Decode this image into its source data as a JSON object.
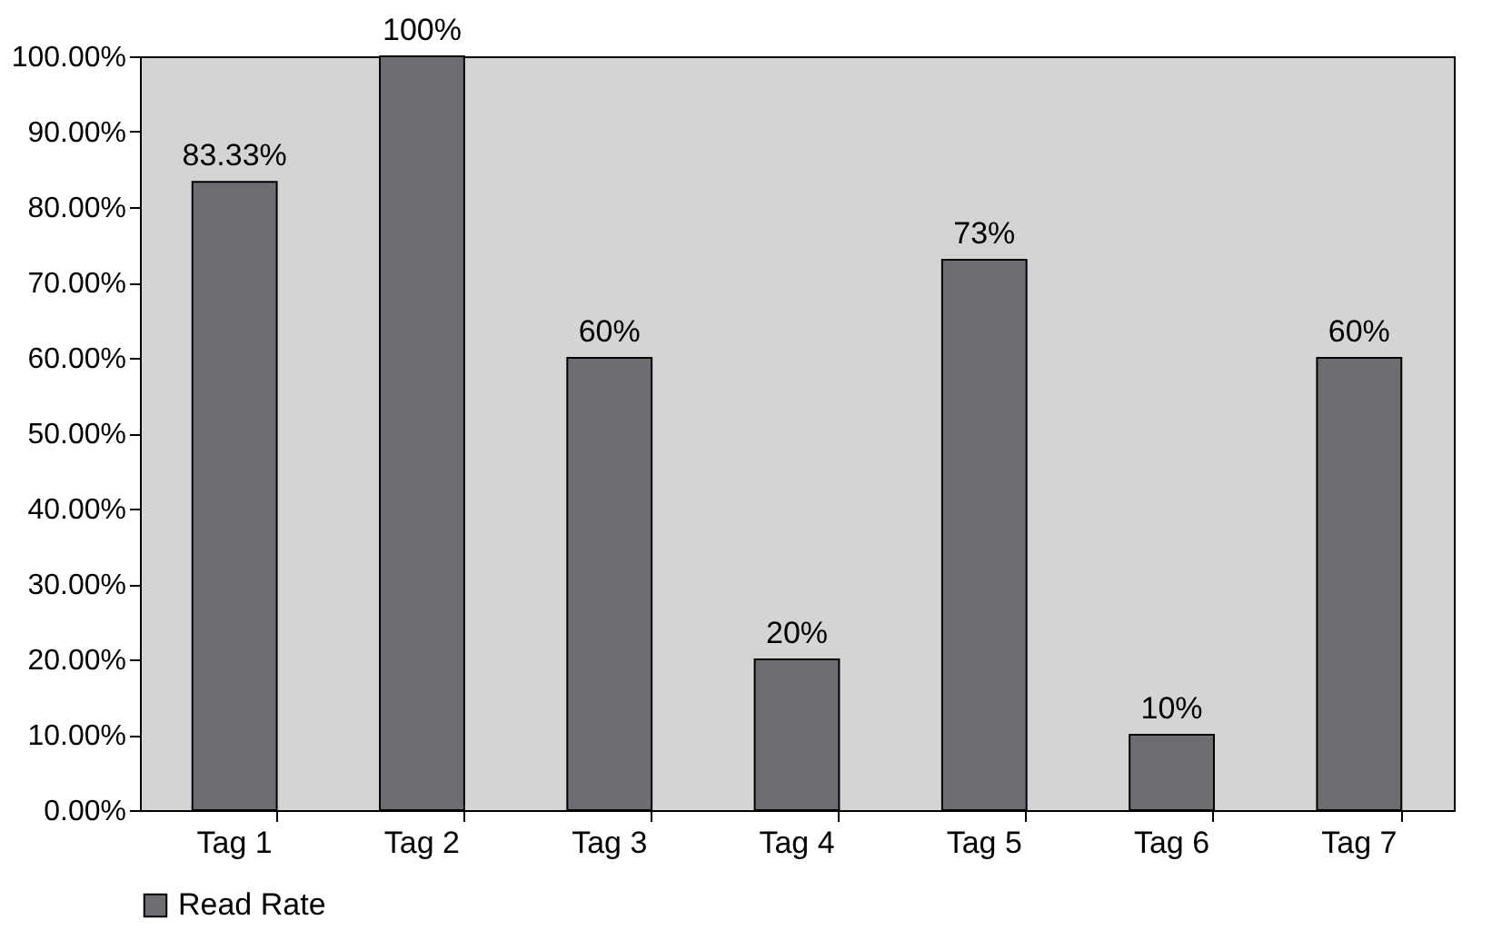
{
  "chart_data": {
    "type": "bar",
    "categories": [
      "Tag 1",
      "Tag 2",
      "Tag 3",
      "Tag 4",
      "Tag 5",
      "Tag 6",
      "Tag 7"
    ],
    "series": [
      {
        "name": "Read Rate",
        "color": "#6d6e71",
        "values": [
          83.33,
          100,
          60,
          20,
          73,
          10,
          60
        ],
        "value_labels": [
          "83.33%",
          "100%",
          "60%",
          "20%",
          "73%",
          "10%",
          "60%"
        ]
      }
    ],
    "ylim": [
      0,
      100
    ],
    "yticks": [
      {
        "value": 0,
        "label": "0.00%"
      },
      {
        "value": 10,
        "label": "10.00%"
      },
      {
        "value": 20,
        "label": "20.00%"
      },
      {
        "value": 30,
        "label": "30.00%"
      },
      {
        "value": 40,
        "label": "40.00%"
      },
      {
        "value": 50,
        "label": "50.00%"
      },
      {
        "value": 60,
        "label": "60.00%"
      },
      {
        "value": 70,
        "label": "70.00%"
      },
      {
        "value": 80,
        "label": "80.00%"
      },
      {
        "value": 90,
        "label": "90.00%"
      },
      {
        "value": 100,
        "label": "100.00%"
      }
    ],
    "grid": false,
    "legend": "bottom"
  }
}
